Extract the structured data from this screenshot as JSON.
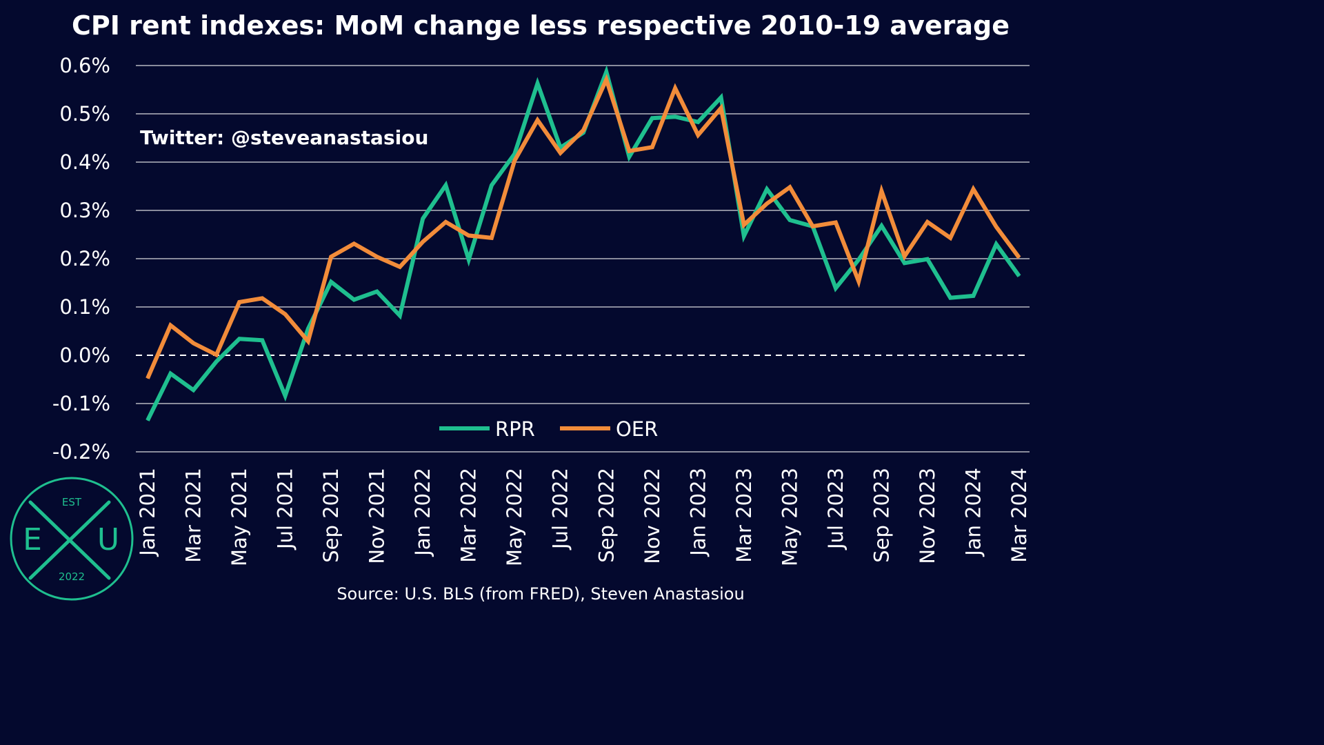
{
  "chart_data": {
    "type": "line",
    "title": "CPI rent indexes: MoM change less respective 2010-19 average",
    "handle": "Twitter: @steveanastasiou",
    "source": "Source: U.S. BLS (from FRED), Steven Anastasiou",
    "x": [
      "Jan 2021",
      "Feb 2021",
      "Mar 2021",
      "Apr 2021",
      "May 2021",
      "Jun 2021",
      "Jul 2021",
      "Aug 2021",
      "Sep 2021",
      "Oct 2021",
      "Nov 2021",
      "Dec 2021",
      "Jan 2022",
      "Feb 2022",
      "Mar 2022",
      "Apr 2022",
      "May 2022",
      "Jun 2022",
      "Jul 2022",
      "Aug 2022",
      "Sep 2022",
      "Oct 2022",
      "Nov 2022",
      "Dec 2022",
      "Jan 2023",
      "Feb 2023",
      "Mar 2023",
      "Apr 2023",
      "May 2023",
      "Jun 2023",
      "Jul 2023",
      "Aug 2023",
      "Sep 2023",
      "Oct 2023",
      "Nov 2023",
      "Dec 2023",
      "Jan 2024",
      "Feb 2024",
      "Mar 2024"
    ],
    "x_tick_labels": [
      "Jan 2021",
      "Mar 2021",
      "May 2021",
      "Jul 2021",
      "Sep 2021",
      "Nov 2021",
      "Jan 2022",
      "Mar 2022",
      "May 2022",
      "Jul 2022",
      "Sep 2022",
      "Nov 2022",
      "Jan 2023",
      "Mar 2023",
      "May 2023",
      "Jul 2023",
      "Sep 2023",
      "Nov 2023",
      "Jan 2024",
      "Mar 2024"
    ],
    "y_tick_labels": [
      "0.6%",
      "0.5%",
      "0.4%",
      "0.3%",
      "0.2%",
      "0.1%",
      "0.0%",
      "-0.1%",
      "-0.2%"
    ],
    "y_ticks": [
      0.6,
      0.5,
      0.4,
      0.3,
      0.2,
      0.1,
      0.0,
      -0.1,
      -0.2
    ],
    "ylim": [
      -0.2,
      0.6
    ],
    "grid": true,
    "zero_line": "dashed",
    "legend_position": "bottom-center",
    "series": [
      {
        "name": "RPR",
        "color": "#1fbf8f",
        "values": [
          -0.135,
          -0.038,
          -0.072,
          -0.013,
          0.034,
          0.031,
          -0.084,
          0.055,
          0.152,
          0.115,
          0.132,
          0.082,
          0.283,
          0.352,
          0.198,
          0.352,
          0.417,
          0.563,
          0.43,
          0.461,
          0.587,
          0.411,
          0.491,
          0.494,
          0.483,
          0.534,
          0.247,
          0.344,
          0.28,
          0.267,
          0.139,
          0.198,
          0.268,
          0.191,
          0.199,
          0.119,
          0.123,
          0.23,
          0.164
        ]
      },
      {
        "name": "OER",
        "color": "#f28c3a",
        "values": [
          -0.048,
          0.062,
          0.025,
          0.001,
          0.11,
          0.118,
          0.085,
          0.029,
          0.204,
          0.231,
          0.204,
          0.183,
          0.235,
          0.276,
          0.248,
          0.243,
          0.403,
          0.487,
          0.419,
          0.466,
          0.571,
          0.423,
          0.431,
          0.553,
          0.456,
          0.512,
          0.27,
          0.314,
          0.348,
          0.267,
          0.275,
          0.153,
          0.34,
          0.205,
          0.276,
          0.243,
          0.344,
          0.266,
          0.202
        ]
      }
    ]
  },
  "logo": {
    "top_text": "EST",
    "left_letter": "E",
    "right_letter": "U",
    "year": "2022"
  }
}
